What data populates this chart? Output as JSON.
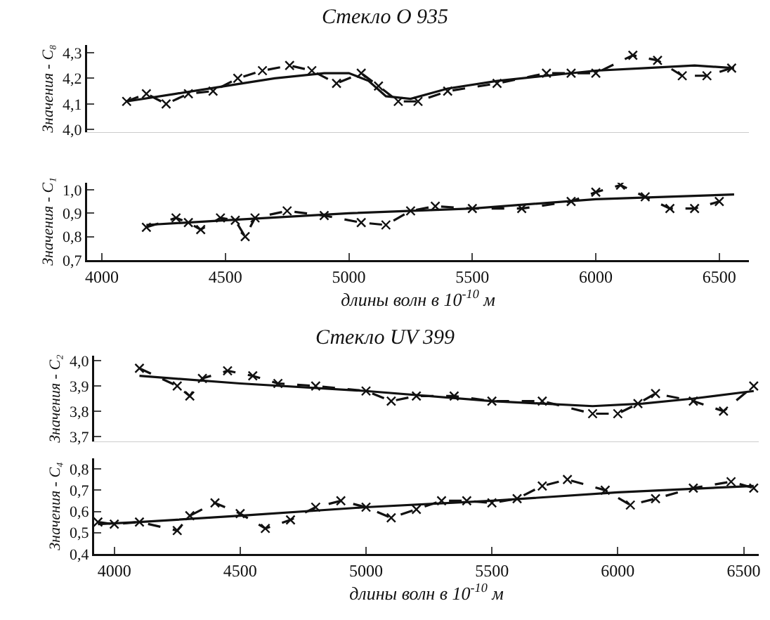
{
  "chart_data": [
    {
      "type": "line",
      "title": "Стекло О 935",
      "ylabel": "Значения - C₈",
      "tick_labels": "y",
      "xlim": [
        3940,
        6620
      ],
      "ylim": [
        3.99,
        4.33
      ],
      "yticks": [
        {
          "value": 4.0,
          "label": "4,0"
        },
        {
          "value": 4.1,
          "label": "4,1"
        },
        {
          "value": 4.2,
          "label": "4,2"
        },
        {
          "value": 4.3,
          "label": "4,3"
        }
      ],
      "series": [
        {
          "color": "#111111",
          "line_style": "solid",
          "marker": "none",
          "x": [
            4100,
            4300,
            4500,
            4700,
            4900,
            5000,
            5080,
            5150,
            5250,
            5400,
            5600,
            5800,
            6000,
            6200,
            6400,
            6560
          ],
          "values": [
            4.11,
            4.14,
            4.17,
            4.2,
            4.22,
            4.22,
            4.19,
            4.13,
            4.12,
            4.16,
            4.19,
            4.21,
            4.23,
            4.24,
            4.25,
            4.24
          ]
        },
        {
          "color": "#111111",
          "line_style": "dashed",
          "marker": "cross",
          "x": [
            4100,
            4180,
            4260,
            4350,
            4450,
            4550,
            4650,
            4760,
            4850,
            4950,
            5050,
            5120,
            5200,
            5280,
            5400,
            5600,
            5800,
            5900,
            6000,
            6150,
            6250,
            6350,
            6450,
            6550
          ],
          "values": [
            4.11,
            4.14,
            4.1,
            4.14,
            4.15,
            4.2,
            4.23,
            4.25,
            4.23,
            4.18,
            4.22,
            4.17,
            4.11,
            4.11,
            4.15,
            4.18,
            4.22,
            4.22,
            4.22,
            4.29,
            4.27,
            4.21,
            4.21,
            4.24
          ]
        }
      ]
    },
    {
      "type": "line",
      "xlabel": "длины волн в 10$^{-10}$ м",
      "ylabel": "Значения - C₁",
      "xlim": [
        3940,
        6620
      ],
      "ylim": [
        0.7,
        1.03
      ],
      "xticks": [
        4000,
        4500,
        5000,
        5500,
        6000,
        6500
      ],
      "yticks": [
        {
          "value": 0.7,
          "label": "0,7"
        },
        {
          "value": 0.8,
          "label": "0,8"
        },
        {
          "value": 0.9,
          "label": "0,9"
        },
        {
          "value": 1.0,
          "label": "1,0"
        }
      ],
      "series": [
        {
          "color": "#111111",
          "line_style": "solid",
          "marker": "none",
          "x": [
            4180,
            4500,
            5000,
            5500,
            6000,
            6560
          ],
          "values": [
            0.85,
            0.87,
            0.9,
            0.92,
            0.96,
            0.98
          ]
        },
        {
          "color": "#111111",
          "line_style": "dashed",
          "marker": "cross",
          "x": [
            4180,
            4300,
            4350,
            4400,
            4480,
            4540,
            4580,
            4620,
            4750,
            4900,
            5050,
            5150,
            5250,
            5350,
            5500,
            5700,
            5900,
            6000,
            6100,
            6200,
            6300,
            6400,
            6500
          ],
          "values": [
            0.84,
            0.88,
            0.86,
            0.83,
            0.88,
            0.87,
            0.8,
            0.88,
            0.91,
            0.89,
            0.86,
            0.85,
            0.91,
            0.93,
            0.92,
            0.92,
            0.95,
            0.99,
            1.02,
            0.97,
            0.92,
            0.92,
            0.95
          ]
        }
      ]
    },
    {
      "type": "line",
      "title": "Стекло UV 399",
      "ylabel": "Значения - C₂",
      "tick_labels": "y",
      "xlim": [
        3920,
        6560
      ],
      "ylim": [
        3.68,
        4.02
      ],
      "yticks": [
        {
          "value": 3.7,
          "label": "3,7"
        },
        {
          "value": 3.8,
          "label": "3,8"
        },
        {
          "value": 3.9,
          "label": "3,9"
        },
        {
          "value": 4.0,
          "label": "4,0"
        }
      ],
      "series": [
        {
          "color": "#111111",
          "line_style": "solid",
          "marker": "none",
          "x": [
            4100,
            4500,
            5000,
            5500,
            5900,
            6100,
            6300,
            6540
          ],
          "values": [
            3.94,
            3.91,
            3.88,
            3.84,
            3.82,
            3.83,
            3.85,
            3.88
          ]
        },
        {
          "color": "#111111",
          "line_style": "dashed",
          "marker": "cross",
          "x": [
            4100,
            4250,
            4300,
            4350,
            4450,
            4550,
            4650,
            4800,
            5000,
            5100,
            5200,
            5350,
            5500,
            5700,
            5900,
            6000,
            6080,
            6150,
            6300,
            6420,
            6540
          ],
          "values": [
            3.97,
            3.9,
            3.86,
            3.93,
            3.96,
            3.94,
            3.91,
            3.9,
            3.88,
            3.84,
            3.86,
            3.86,
            3.84,
            3.84,
            3.79,
            3.79,
            3.83,
            3.87,
            3.84,
            3.8,
            3.9
          ]
        }
      ]
    },
    {
      "type": "line",
      "xlabel": "длины волн в 10$^{-10}$ м",
      "ylabel": "Значения - C₄",
      "xlim": [
        3920,
        6560
      ],
      "ylim": [
        0.4,
        0.85
      ],
      "xticks": [
        4000,
        4500,
        5000,
        5500,
        6000,
        6500
      ],
      "yticks": [
        {
          "value": 0.4,
          "label": "0,4"
        },
        {
          "value": 0.5,
          "label": "0,5"
        },
        {
          "value": 0.6,
          "label": "0,6"
        },
        {
          "value": 0.7,
          "label": "0,7"
        },
        {
          "value": 0.8,
          "label": "0,8"
        }
      ],
      "series": [
        {
          "color": "#111111",
          "line_style": "solid",
          "marker": "none",
          "x": [
            3935,
            4100,
            4500,
            5000,
            5500,
            6000,
            6540
          ],
          "values": [
            0.54,
            0.55,
            0.58,
            0.62,
            0.65,
            0.69,
            0.72
          ]
        },
        {
          "color": "#111111",
          "line_style": "dashed",
          "marker": "cross",
          "x": [
            3935,
            4000,
            4100,
            4250,
            4300,
            4400,
            4500,
            4600,
            4700,
            4800,
            4900,
            5000,
            5100,
            5200,
            5300,
            5400,
            5500,
            5600,
            5700,
            5800,
            5950,
            6050,
            6150,
            6300,
            6450,
            6540
          ],
          "values": [
            0.55,
            0.54,
            0.55,
            0.51,
            0.58,
            0.64,
            0.59,
            0.52,
            0.56,
            0.62,
            0.65,
            0.62,
            0.57,
            0.61,
            0.65,
            0.65,
            0.64,
            0.66,
            0.72,
            0.75,
            0.7,
            0.63,
            0.66,
            0.71,
            0.74,
            0.71
          ]
        }
      ]
    }
  ]
}
